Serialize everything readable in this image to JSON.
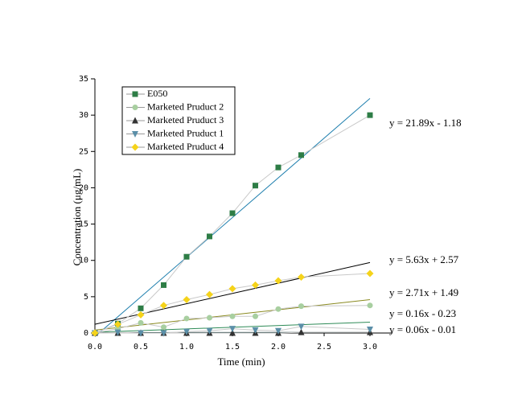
{
  "chart_data": {
    "type": "line",
    "xlabel": "Time (min)",
    "ylabel": "Concentration (μg/mL)",
    "x": [
      0,
      0.25,
      0.5,
      0.75,
      1.0,
      1.25,
      1.5,
      1.75,
      2.0,
      2.25,
      3.0
    ],
    "xlim": [
      0,
      3.0
    ],
    "ylim": [
      0,
      35
    ],
    "xticks": [
      {
        "value": 0,
        "label": "0.0"
      },
      0.5,
      {
        "value": 1,
        "label": "1.0"
      },
      1.5,
      {
        "value": 2,
        "label": "2.0"
      },
      2.5,
      {
        "value": 3,
        "label": "3.0"
      }
    ],
    "yticks": [
      0,
      5,
      10,
      15,
      20,
      25,
      30,
      35
    ],
    "series": [
      {
        "name": "E050",
        "color": "#2e7d46",
        "marker": "square",
        "values": [
          0,
          1.3,
          3.4,
          6.6,
          10.5,
          13.3,
          16.5,
          20.3,
          22.8,
          24.5,
          30
        ]
      },
      {
        "name": "Marketed Pruduct 2",
        "color": "#a8cfa0",
        "marker": "circle",
        "values": [
          0,
          0.6,
          1.4,
          0.8,
          2.0,
          2.1,
          2.3,
          2.3,
          3.3,
          3.7,
          3.8
        ]
      },
      {
        "name": "Marketed Pruduct 3",
        "color": "#333333",
        "marker": "triangle-up",
        "values": [
          0,
          0,
          0,
          0,
          0,
          0,
          0,
          0,
          0,
          0.1,
          0.1
        ]
      },
      {
        "name": "Marketed Pruduct 1",
        "color": "#5b8fa8",
        "marker": "triangle-down",
        "values": [
          0,
          0.1,
          0,
          0,
          0.2,
          0.3,
          0.6,
          0.4,
          0.3,
          0.9,
          0.5
        ]
      },
      {
        "name": "Marketed Pruduct 4",
        "color": "#f5d31a",
        "marker": "diamond",
        "values": [
          0,
          1.2,
          2.5,
          3.8,
          4.6,
          5.3,
          6.1,
          6.6,
          7.2,
          7.7,
          8.2
        ]
      }
    ],
    "trendlines": [
      {
        "label": "y = 21.89x - 1.18",
        "color": "#1f7fae",
        "x": [
          0,
          3.0
        ],
        "y": [
          -0.5,
          32.3
        ]
      },
      {
        "label": "y = 5.63x + 2.57",
        "color": "#000000",
        "x": [
          0,
          3.0
        ],
        "y": [
          1.2,
          9.7
        ]
      },
      {
        "label": "y = 2.71x + 1.49",
        "color": "#8a8a20",
        "x": [
          0,
          3.0
        ],
        "y": [
          0.4,
          4.6
        ]
      },
      {
        "label": "y = 0.16x - 0.23",
        "color": "#2e8b57",
        "x": [
          0,
          3.0
        ],
        "y": [
          0.1,
          1.5
        ]
      },
      {
        "label": "y = 0.06x - 0.01",
        "color": "#1a3a3a",
        "x": [
          0,
          3.0
        ],
        "y": [
          0.05,
          0.1
        ]
      }
    ]
  }
}
